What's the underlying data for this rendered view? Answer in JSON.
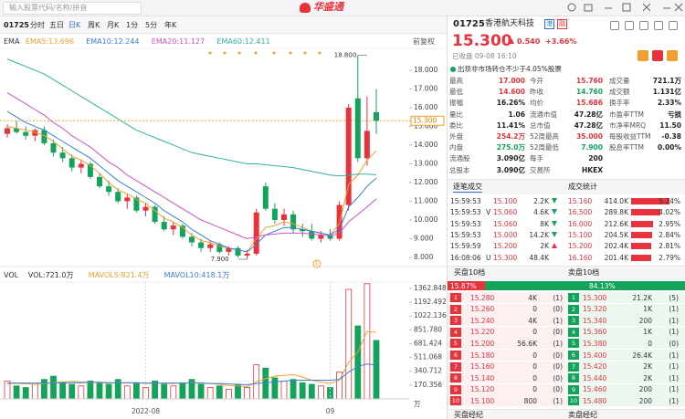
{
  "topbar": {
    "search_placeholder": "输入股票代码/名称/拼音",
    "logo": "华盛通"
  },
  "toolbar": {
    "code": "01725",
    "tabs": [
      "分时",
      "五日",
      "日K",
      "周K",
      "月K",
      "1分",
      "5分",
      "年K"
    ],
    "adjust": "前复权"
  },
  "ema_legend": [
    "EMA",
    "EMA5:13.696",
    "EMA10:12.244",
    "EMA20:11.127",
    "EMA60:12.411"
  ],
  "vol_legend": [
    "VOL",
    "VOL:721.0万",
    "MAVOL5:821.4万",
    "MAVOL10:418.1万"
  ],
  "chart_data": {
    "type": "candlestick",
    "up_color": "#e8323c",
    "down_color": "#14a35a",
    "open": [
      14.6,
      14.9,
      14.7,
      14.5,
      14.8,
      14.1,
      13.6,
      13.3,
      12.8,
      13.0,
      12.3,
      11.8,
      11.5,
      11.0,
      11.2,
      10.5,
      10.7,
      9.9,
      9.5,
      9.7,
      9.1,
      8.8,
      8.5,
      8.7,
      8.3,
      8.5,
      8.1,
      8.2,
      11.8,
      10.6,
      10.0,
      10.3,
      9.5,
      9.4,
      9.0,
      9.2,
      9.0,
      10.8,
      16.5,
      13.3,
      15.76
    ],
    "high": [
      15.1,
      15.3,
      15.0,
      14.9,
      15.0,
      14.3,
      13.9,
      13.5,
      13.2,
      13.1,
      12.5,
      12.1,
      11.7,
      11.4,
      11.3,
      10.9,
      10.8,
      10.2,
      9.9,
      9.8,
      9.3,
      9.0,
      8.9,
      8.8,
      8.6,
      8.6,
      8.4,
      10.6,
      12.0,
      10.9,
      10.6,
      10.5,
      9.8,
      9.8,
      9.4,
      9.5,
      11.0,
      16.2,
      18.8,
      16.6,
      17.0
    ],
    "low": [
      14.4,
      14.6,
      14.3,
      14.2,
      14.0,
      13.4,
      13.1,
      12.6,
      12.5,
      12.2,
      11.7,
      11.3,
      10.9,
      10.6,
      10.4,
      10.2,
      9.8,
      9.4,
      9.2,
      9.0,
      8.6,
      8.3,
      8.3,
      8.2,
      8.1,
      8.0,
      7.9,
      8.1,
      10.5,
      9.8,
      9.7,
      9.3,
      9.1,
      8.9,
      8.8,
      8.9,
      8.9,
      10.5,
      13.1,
      12.9,
      14.6
    ],
    "close": [
      14.9,
      14.7,
      14.5,
      14.8,
      14.1,
      13.6,
      13.3,
      12.8,
      13.0,
      12.3,
      11.8,
      11.5,
      11.0,
      11.2,
      10.5,
      10.7,
      9.9,
      9.5,
      9.7,
      9.1,
      8.8,
      8.5,
      8.7,
      8.3,
      8.5,
      8.1,
      8.2,
      10.4,
      10.6,
      10.0,
      10.3,
      9.5,
      9.4,
      9.0,
      9.2,
      9.0,
      10.8,
      16.0,
      13.3,
      14.76,
      15.3
    ],
    "ylim": [
      7.61,
      19.07
    ],
    "yticks": [
      {
        "value": 18,
        "label": "18.000"
      },
      {
        "value": 17,
        "label": "17.000"
      },
      {
        "value": 16,
        "label": "16.000"
      },
      {
        "value": 15,
        "label": "15.000"
      },
      {
        "value": 14,
        "label": "14.000"
      },
      {
        "value": 13,
        "label": "13.000"
      },
      {
        "value": 12,
        "label": "12.000"
      },
      {
        "value": 11,
        "label": "11.000"
      },
      {
        "value": 10,
        "label": "10.000"
      },
      {
        "value": 9,
        "label": "9.000"
      },
      {
        "value": 8,
        "label": "8.000"
      }
    ],
    "last_price": {
      "value": 15.3,
      "label": "15.300"
    },
    "high_mark": {
      "value": 18.8,
      "label": "18.800"
    },
    "low_mark": {
      "value": 7.9,
      "label": "7.900"
    },
    "event_marker": "E",
    "x_labels": [
      {
        "index": 15,
        "label": "2022-08"
      },
      {
        "index": 35,
        "label": "09"
      }
    ],
    "ema": [
      {
        "name": "EMA5",
        "color": "#f0a030",
        "values": [
          15.0,
          14.9,
          14.8,
          14.7,
          14.5,
          14.2,
          13.8,
          13.4,
          13.2,
          12.9,
          12.5,
          12.0,
          11.6,
          11.4,
          11.1,
          10.9,
          10.5,
          10.1,
          9.9,
          9.6,
          9.2,
          8.9,
          8.8,
          8.6,
          8.5,
          8.4,
          8.3,
          9.0,
          9.6,
          9.7,
          9.9,
          9.8,
          9.6,
          9.4,
          9.3,
          9.2,
          9.8,
          11.9,
          12.4,
          13.2,
          13.696
        ]
      },
      {
        "name": "EMA10",
        "color": "#3a7fd5",
        "values": [
          15.8,
          15.5,
          15.2,
          15.0,
          14.8,
          14.5,
          14.2,
          13.9,
          13.6,
          13.3,
          12.9,
          12.5,
          12.1,
          11.8,
          11.5,
          11.2,
          10.9,
          10.5,
          10.2,
          9.9,
          9.5,
          9.2,
          8.9,
          8.7,
          8.5,
          8.4,
          8.3,
          8.7,
          9.2,
          9.4,
          9.6,
          9.6,
          9.5,
          9.4,
          9.3,
          9.2,
          9.5,
          10.7,
          11.2,
          11.8,
          12.244
        ]
      },
      {
        "name": "EMA20",
        "color": "#d050c0",
        "values": [
          16.8,
          16.5,
          16.2,
          15.9,
          15.6,
          15.2,
          14.9,
          14.5,
          14.2,
          13.9,
          13.5,
          13.1,
          12.8,
          12.4,
          12.1,
          11.8,
          11.5,
          11.2,
          10.9,
          10.6,
          10.3,
          10.0,
          9.8,
          9.6,
          9.4,
          9.2,
          9.0,
          9.1,
          9.2,
          9.25,
          9.3,
          9.3,
          9.3,
          9.25,
          9.2,
          9.15,
          9.3,
          9.9,
          10.3,
          10.7,
          11.127
        ]
      },
      {
        "name": "EMA60",
        "color": "#30b0a0",
        "values": [
          18.6,
          18.4,
          18.2,
          18.0,
          17.8,
          17.5,
          17.2,
          16.9,
          16.6,
          16.3,
          16.0,
          15.7,
          15.4,
          15.1,
          14.8,
          14.6,
          14.4,
          14.2,
          14.0,
          13.8,
          13.6,
          13.5,
          13.4,
          13.3,
          13.2,
          13.1,
          13.0,
          13.0,
          12.95,
          12.9,
          12.85,
          12.8,
          12.7,
          12.6,
          12.5,
          12.4,
          12.35,
          12.4,
          12.45,
          12.45,
          12.411
        ]
      }
    ],
    "volume": {
      "values": [
        220,
        160,
        140,
        180,
        240,
        280,
        200,
        180,
        160,
        220,
        200,
        180,
        240,
        160,
        200,
        140,
        220,
        180,
        160,
        200,
        240,
        180,
        140,
        160,
        120,
        180,
        140,
        420,
        380,
        260,
        220,
        240,
        200,
        180,
        160,
        140,
        330,
        1350,
        900,
        1420,
        721
      ],
      "ylim": [
        0,
        1440
      ],
      "yticks": [
        {
          "value": 1362.848,
          "label": "1362.848"
        },
        {
          "value": 1192.492,
          "label": "1192.492"
        },
        {
          "value": 1022.136,
          "label": "1022.136"
        },
        {
          "value": 851.78,
          "label": "851.780"
        },
        {
          "value": 681.424,
          "label": "681.424"
        },
        {
          "value": 511.068,
          "label": "511.068"
        },
        {
          "value": 340.712,
          "label": "340.712"
        },
        {
          "value": 170.356,
          "label": "170.356"
        }
      ],
      "unit": "万",
      "series": [
        {
          "name": "MAVOL5",
          "color": "#f0a030",
          "values": [
            190,
            190,
            185,
            180,
            190,
            200,
            210,
            215,
            210,
            205,
            200,
            195,
            200,
            195,
            200,
            190,
            195,
            190,
            190,
            195,
            200,
            200,
            190,
            180,
            165,
            160,
            150,
            210,
            250,
            280,
            290,
            300,
            270,
            230,
            210,
            190,
            230,
            450,
            580,
            830,
            821.4
          ]
        },
        {
          "name": "MAVOL10",
          "color": "#3a7fd5",
          "values": [
            195,
            195,
            195,
            195,
            195,
            195,
            200,
            200,
            200,
            205,
            205,
            200,
            200,
            200,
            200,
            195,
            195,
            195,
            195,
            195,
            195,
            195,
            190,
            190,
            185,
            180,
            175,
            190,
            200,
            210,
            220,
            230,
            230,
            230,
            230,
            230,
            240,
            330,
            400,
            430,
            418.1
          ]
        }
      ]
    }
  },
  "quote": {
    "code": "01725",
    "name": "香港航天科技",
    "tags": [
      "港",
      "融"
    ],
    "price": "15.300",
    "change": "0.540",
    "change_pct": "+3.66%",
    "status": "已收盘 09-08 16:10",
    "notice": "出现非市场转仓不少于4.05%股票",
    "stats": [
      [
        [
          "最高",
          "17.000"
        ],
        [
          "今开",
          "15.760"
        ],
        [
          "成交量",
          "721.1万"
        ]
      ],
      [
        [
          "最低",
          "14.600"
        ],
        [
          "昨收",
          "14.760"
        ],
        [
          "成交额",
          "1.131亿"
        ]
      ],
      [
        [
          "振幅",
          "16.26%"
        ],
        [
          "均价",
          "15.686"
        ],
        [
          "换手率",
          "2.33%"
        ]
      ],
      [
        [
          "量比",
          "1.06"
        ],
        [
          "流通市值",
          "47.28亿"
        ],
        [
          "市盈率TTM",
          "亏损"
        ]
      ],
      [
        [
          "委比",
          "11.41%"
        ],
        [
          "总市值",
          "47.28亿"
        ],
        [
          "市净率MRQ",
          "11.50"
        ]
      ],
      [
        [
          "外盘",
          "254.2万"
        ],
        [
          "52周最高",
          "35.000"
        ],
        [
          "每股收益TTM",
          "-0.38"
        ]
      ],
      [
        [
          "内盘",
          "275.0万"
        ],
        [
          "52周最低",
          "7.900"
        ],
        [
          "股息率TTM",
          "0.00%"
        ]
      ],
      [
        [
          "流通股",
          "3.090亿"
        ],
        [
          "每手",
          "200"
        ]
      ],
      [
        [
          "总股本",
          "3.090亿"
        ],
        [
          "交易所",
          "HKEX"
        ]
      ]
    ]
  },
  "trades": {
    "tab": "逐笔成交",
    "rows": [
      [
        "15:59:53",
        "",
        "15.100",
        "2.2K"
      ],
      [
        "15:59:53",
        "V",
        "15.060",
        "4.6K"
      ],
      [
        "15:59:53",
        "",
        "15.060",
        "8K"
      ],
      [
        "15:59:53",
        "",
        "15.000",
        "14.2K"
      ],
      [
        "15:59:59",
        "",
        "15.200",
        "2K"
      ],
      [
        "16:08:06",
        "U",
        "15.300",
        "48.4K"
      ]
    ]
  },
  "trade_stats": {
    "tab": "成交统计",
    "rows": [
      [
        "15.160",
        "414.0K",
        5.24,
        "5.24%"
      ],
      [
        "16.500",
        "289.8K",
        4.02,
        "4.02%"
      ],
      [
        "16.000",
        "212.6K",
        2.95,
        "2.95%"
      ],
      [
        "15.100",
        "204.5K",
        2.84,
        "2.84%"
      ],
      [
        "15.200",
        "202.4K",
        2.81,
        "2.81%"
      ],
      [
        "16.160",
        "201.4K",
        2.79,
        "2.79%"
      ]
    ]
  },
  "order_book": {
    "bid_title": "买盘10档",
    "ask_title": "卖盘10档",
    "bid_ratio": 15.87,
    "bid_ratio_label": "15.87%",
    "ask_ratio": 84.13,
    "ask_ratio_label": "84.13%",
    "levels": [
      "1",
      "2",
      "3",
      "4",
      "5",
      "6",
      "7",
      "8",
      "9",
      "10"
    ],
    "bids": [
      [
        "15.280",
        "4K",
        "(1)"
      ],
      [
        "15.260",
        "0",
        "(0)"
      ],
      [
        "15.240",
        "4K",
        "(1)"
      ],
      [
        "15.220",
        "0",
        "(0)"
      ],
      [
        "15.200",
        "56.6K",
        "(1)"
      ],
      [
        "15.180",
        "0",
        "(0)"
      ],
      [
        "15.160",
        "0",
        "(0)"
      ],
      [
        "15.140",
        "0",
        "(0)"
      ],
      [
        "15.120",
        "0",
        "(0)"
      ],
      [
        "15.100",
        "800",
        "(1)"
      ]
    ],
    "asks": [
      [
        "15.300",
        "21.2K",
        "(5)"
      ],
      [
        "15.320",
        "1K",
        "(1)"
      ],
      [
        "15.340",
        "200",
        "(1)"
      ],
      [
        "15.360",
        "1K",
        "(1)"
      ],
      [
        "15.380",
        "0",
        "(0)"
      ],
      [
        "15.400",
        "26.4K",
        "(1)"
      ],
      [
        "15.420",
        "2K",
        "(1)"
      ],
      [
        "15.440",
        "2K",
        "(1)"
      ],
      [
        "15.460",
        "200",
        "(1)"
      ],
      [
        "15.480",
        "200",
        "(1)"
      ]
    ],
    "bid_broker": "买盘经纪",
    "ask_broker": "卖盘经纪"
  }
}
